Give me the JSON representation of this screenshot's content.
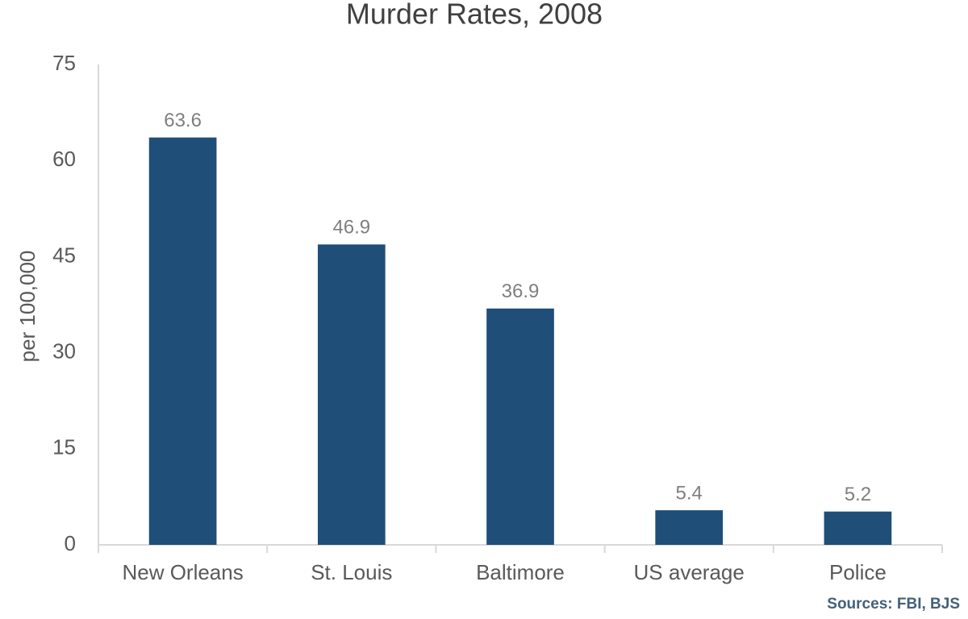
{
  "chart_data": {
    "type": "bar",
    "title": "Murder Rates, 2008",
    "y_label": "per 100,000",
    "categories": [
      "New Orleans",
      "St. Louis",
      "Baltimore",
      "US average",
      "Police"
    ],
    "values": [
      63.6,
      46.9,
      36.9,
      5.4,
      5.2
    ],
    "color": "#1f4e79",
    "ylim": [
      0,
      75
    ],
    "yticks": [
      0,
      15,
      30,
      45,
      60,
      75
    ],
    "grid": false,
    "source": "Sources: FBI, BJS"
  }
}
